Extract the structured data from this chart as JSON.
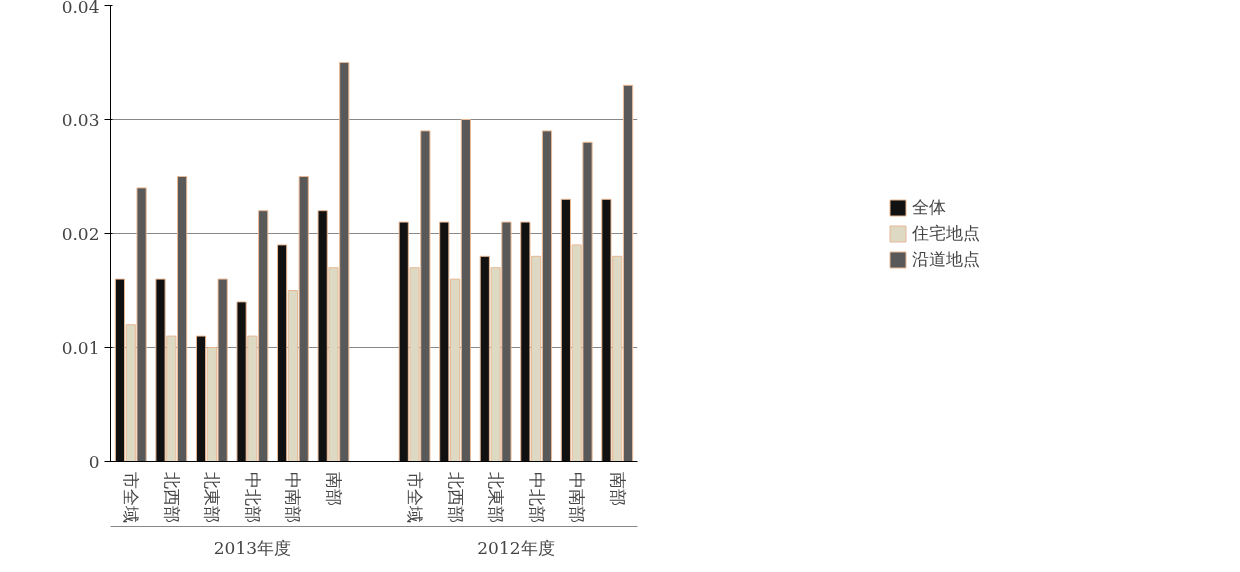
{
  "chart_data": {
    "type": "bar",
    "categories": [
      "市全域",
      "北西部",
      "北東部",
      "中北部",
      "中南部",
      "南部",
      null,
      "市全域",
      "北西部",
      "北東部",
      "中北部",
      "中南部",
      "南部"
    ],
    "series": [
      {
        "name": "全体",
        "color": "#111111",
        "values": [
          0.016,
          0.016,
          0.011,
          0.014,
          0.019,
          0.022,
          null,
          0.021,
          0.021,
          0.018,
          0.021,
          0.023,
          0.023
        ]
      },
      {
        "name": "住宅地点",
        "color": "#ddd9c3",
        "values": [
          0.012,
          0.011,
          0.01,
          0.011,
          0.015,
          0.017,
          null,
          0.017,
          0.016,
          0.017,
          0.018,
          0.019,
          0.018
        ]
      },
      {
        "name": "沿道地点",
        "color": "#595959",
        "values": [
          0.024,
          0.025,
          0.016,
          0.022,
          0.025,
          0.035,
          null,
          0.029,
          0.03,
          0.021,
          0.029,
          0.028,
          0.033
        ]
      }
    ],
    "annotations": [
      "2013年度",
      "2012年度"
    ],
    "ylim": [
      0,
      0.04
    ],
    "yticks": [
      0,
      0.01,
      0.02,
      0.03,
      0.04
    ],
    "grid": "y",
    "legend": "right"
  }
}
